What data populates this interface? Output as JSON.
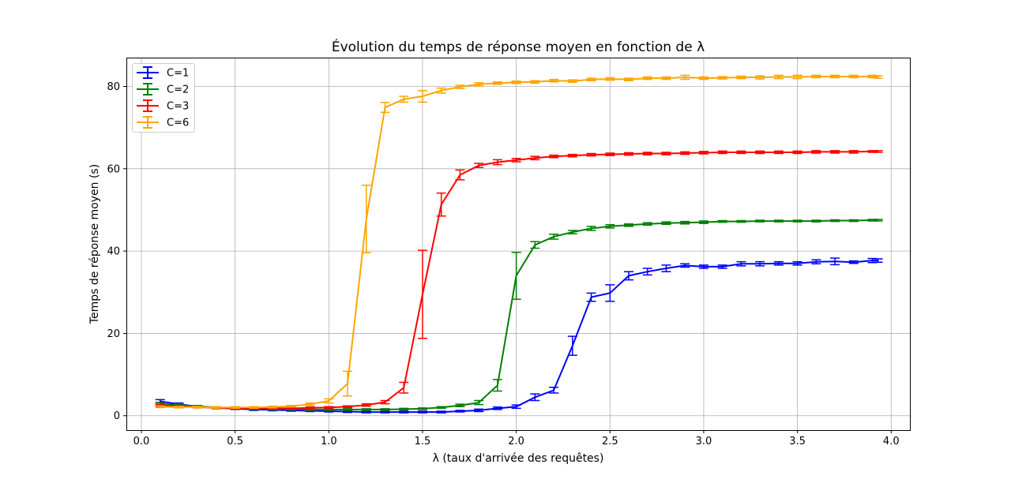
{
  "chart_data": {
    "type": "line",
    "title": "Évolution du temps de réponse moyen en fonction de λ",
    "xlabel": "λ (taux d'arrivée des requêtes)",
    "ylabel": "Temps de réponse moyen (s)",
    "xlim": [
      -0.08,
      4.1
    ],
    "ylim": [
      -3.5,
      87
    ],
    "xticks": [
      0.0,
      0.5,
      1.0,
      1.5,
      2.0,
      2.5,
      3.0,
      3.5,
      4.0
    ],
    "xtick_labels": [
      "0.0",
      "0.5",
      "1.0",
      "1.5",
      "2.0",
      "2.5",
      "3.0",
      "3.5",
      "4.0"
    ],
    "yticks": [
      0,
      20,
      40,
      60,
      80
    ],
    "ytick_labels": [
      "0",
      "20",
      "40",
      "60",
      "80"
    ],
    "grid": true,
    "legend_position": "top-left",
    "error_bars": true,
    "series": [
      {
        "name": "C=1",
        "color": "#0000ff",
        "points": [
          [
            0.1,
            3.5,
            0.4
          ],
          [
            0.2,
            2.8,
            0.3
          ],
          [
            0.3,
            2.2,
            0.2
          ],
          [
            0.4,
            1.9,
            0.2
          ],
          [
            0.5,
            1.7,
            0.2
          ],
          [
            0.6,
            1.5,
            0.2
          ],
          [
            0.7,
            1.4,
            0.2
          ],
          [
            0.8,
            1.3,
            0.2
          ],
          [
            0.9,
            1.2,
            0.2
          ],
          [
            1.0,
            1.1,
            0.2
          ],
          [
            1.1,
            1.0,
            0.2
          ],
          [
            1.2,
            0.9,
            0.2
          ],
          [
            1.3,
            0.9,
            0.2
          ],
          [
            1.4,
            0.9,
            0.2
          ],
          [
            1.5,
            0.9,
            0.2
          ],
          [
            1.6,
            0.9,
            0.2
          ],
          [
            1.7,
            1.1,
            0.2
          ],
          [
            1.8,
            1.3,
            0.3
          ],
          [
            1.9,
            1.8,
            0.3
          ],
          [
            2.0,
            2.2,
            0.4
          ],
          [
            2.1,
            4.5,
            0.8
          ],
          [
            2.2,
            6.2,
            0.7
          ],
          [
            2.3,
            17.0,
            2.3
          ],
          [
            2.4,
            28.8,
            1.0
          ],
          [
            2.5,
            29.8,
            2.0
          ],
          [
            2.6,
            34.0,
            1.0
          ],
          [
            2.7,
            35.0,
            0.8
          ],
          [
            2.8,
            35.8,
            0.8
          ],
          [
            2.9,
            36.5,
            0.4
          ],
          [
            3.0,
            36.2,
            0.4
          ],
          [
            3.1,
            36.2,
            0.4
          ],
          [
            3.2,
            36.9,
            0.5
          ],
          [
            3.3,
            36.9,
            0.5
          ],
          [
            3.4,
            37.0,
            0.4
          ],
          [
            3.5,
            37.0,
            0.4
          ],
          [
            3.6,
            37.4,
            0.5
          ],
          [
            3.7,
            37.5,
            0.8
          ],
          [
            3.8,
            37.3,
            0.3
          ],
          [
            3.9,
            37.7,
            0.5
          ],
          [
            3.93,
            37.7,
            0.4
          ]
        ]
      },
      {
        "name": "C=2",
        "color": "#008000",
        "points": [
          [
            0.1,
            2.9,
            0.3
          ],
          [
            0.2,
            2.6,
            0.3
          ],
          [
            0.3,
            2.3,
            0.2
          ],
          [
            0.4,
            2.0,
            0.2
          ],
          [
            0.5,
            1.8,
            0.2
          ],
          [
            0.6,
            1.7,
            0.2
          ],
          [
            0.7,
            1.6,
            0.2
          ],
          [
            0.8,
            1.6,
            0.2
          ],
          [
            0.9,
            1.5,
            0.2
          ],
          [
            1.0,
            1.5,
            0.2
          ],
          [
            1.1,
            1.5,
            0.2
          ],
          [
            1.2,
            1.5,
            0.2
          ],
          [
            1.3,
            1.5,
            0.2
          ],
          [
            1.4,
            1.6,
            0.2
          ],
          [
            1.5,
            1.7,
            0.2
          ],
          [
            1.6,
            2.0,
            0.2
          ],
          [
            1.7,
            2.5,
            0.3
          ],
          [
            1.8,
            3.2,
            0.5
          ],
          [
            1.9,
            7.4,
            1.4
          ],
          [
            2.0,
            34.0,
            5.7
          ],
          [
            2.1,
            41.5,
            0.8
          ],
          [
            2.2,
            43.5,
            0.6
          ],
          [
            2.3,
            44.6,
            0.4
          ],
          [
            2.4,
            45.5,
            0.5
          ],
          [
            2.5,
            46.0,
            0.4
          ],
          [
            2.6,
            46.3,
            0.3
          ],
          [
            2.7,
            46.6,
            0.3
          ],
          [
            2.8,
            46.8,
            0.3
          ],
          [
            2.9,
            46.9,
            0.3
          ],
          [
            3.0,
            47.0,
            0.3
          ],
          [
            3.1,
            47.2,
            0.2
          ],
          [
            3.2,
            47.2,
            0.2
          ],
          [
            3.3,
            47.3,
            0.2
          ],
          [
            3.4,
            47.3,
            0.2
          ],
          [
            3.5,
            47.3,
            0.2
          ],
          [
            3.6,
            47.3,
            0.2
          ],
          [
            3.7,
            47.4,
            0.2
          ],
          [
            3.8,
            47.4,
            0.2
          ],
          [
            3.9,
            47.5,
            0.2
          ],
          [
            3.93,
            47.5,
            0.2
          ]
        ]
      },
      {
        "name": "C=3",
        "color": "#ff0000",
        "points": [
          [
            0.1,
            2.5,
            0.2
          ],
          [
            0.2,
            2.3,
            0.2
          ],
          [
            0.3,
            2.1,
            0.2
          ],
          [
            0.4,
            1.9,
            0.2
          ],
          [
            0.5,
            1.8,
            0.2
          ],
          [
            0.6,
            1.8,
            0.2
          ],
          [
            0.7,
            1.8,
            0.2
          ],
          [
            0.8,
            1.8,
            0.2
          ],
          [
            0.9,
            1.9,
            0.2
          ],
          [
            1.0,
            2.0,
            0.2
          ],
          [
            1.1,
            2.2,
            0.2
          ],
          [
            1.2,
            2.6,
            0.3
          ],
          [
            1.3,
            3.3,
            0.4
          ],
          [
            1.4,
            6.8,
            1.3
          ],
          [
            1.5,
            29.5,
            10.7
          ],
          [
            1.6,
            51.3,
            2.8
          ],
          [
            1.7,
            58.5,
            1.2
          ],
          [
            1.8,
            60.8,
            0.5
          ],
          [
            1.9,
            61.6,
            0.6
          ],
          [
            2.0,
            62.1,
            0.4
          ],
          [
            2.1,
            62.6,
            0.4
          ],
          [
            2.2,
            63.0,
            0.3
          ],
          [
            2.3,
            63.2,
            0.3
          ],
          [
            2.4,
            63.4,
            0.3
          ],
          [
            2.5,
            63.5,
            0.3
          ],
          [
            2.6,
            63.6,
            0.3
          ],
          [
            2.7,
            63.7,
            0.3
          ],
          [
            2.8,
            63.7,
            0.3
          ],
          [
            2.9,
            63.8,
            0.3
          ],
          [
            3.0,
            63.9,
            0.3
          ],
          [
            3.1,
            64.0,
            0.3
          ],
          [
            3.2,
            64.0,
            0.3
          ],
          [
            3.3,
            64.0,
            0.3
          ],
          [
            3.4,
            64.0,
            0.3
          ],
          [
            3.5,
            64.0,
            0.3
          ],
          [
            3.6,
            64.1,
            0.3
          ],
          [
            3.7,
            64.1,
            0.3
          ],
          [
            3.8,
            64.1,
            0.3
          ],
          [
            3.9,
            64.2,
            0.2
          ],
          [
            3.93,
            64.2,
            0.2
          ]
        ]
      },
      {
        "name": "C=6",
        "color": "#ffa500",
        "points": [
          [
            0.1,
            2.2,
            0.2
          ],
          [
            0.2,
            2.1,
            0.2
          ],
          [
            0.3,
            2.1,
            0.2
          ],
          [
            0.4,
            2.0,
            0.2
          ],
          [
            0.5,
            2.0,
            0.2
          ],
          [
            0.6,
            2.0,
            0.2
          ],
          [
            0.7,
            2.1,
            0.2
          ],
          [
            0.8,
            2.3,
            0.2
          ],
          [
            0.9,
            2.8,
            0.3
          ],
          [
            1.0,
            3.6,
            0.5
          ],
          [
            1.1,
            7.8,
            3.0
          ],
          [
            1.2,
            47.8,
            8.2
          ],
          [
            1.3,
            74.9,
            1.2
          ],
          [
            1.4,
            76.9,
            0.7
          ],
          [
            1.5,
            77.6,
            1.4
          ],
          [
            1.6,
            79.0,
            0.6
          ],
          [
            1.7,
            79.9,
            0.4
          ],
          [
            1.8,
            80.5,
            0.4
          ],
          [
            1.9,
            80.8,
            0.3
          ],
          [
            2.0,
            81.0,
            0.3
          ],
          [
            2.1,
            81.1,
            0.3
          ],
          [
            2.2,
            81.4,
            0.3
          ],
          [
            2.3,
            81.3,
            0.3
          ],
          [
            2.4,
            81.7,
            0.3
          ],
          [
            2.5,
            81.8,
            0.3
          ],
          [
            2.6,
            81.7,
            0.3
          ],
          [
            2.7,
            82.0,
            0.3
          ],
          [
            2.8,
            82.0,
            0.3
          ],
          [
            2.9,
            82.2,
            0.5
          ],
          [
            3.0,
            82.0,
            0.3
          ],
          [
            3.1,
            82.1,
            0.3
          ],
          [
            3.2,
            82.2,
            0.3
          ],
          [
            3.3,
            82.2,
            0.4
          ],
          [
            3.4,
            82.3,
            0.4
          ],
          [
            3.5,
            82.3,
            0.4
          ],
          [
            3.6,
            82.4,
            0.3
          ],
          [
            3.7,
            82.4,
            0.3
          ],
          [
            3.8,
            82.4,
            0.3
          ],
          [
            3.9,
            82.4,
            0.3
          ],
          [
            3.93,
            82.3,
            0.3
          ]
        ]
      }
    ]
  }
}
